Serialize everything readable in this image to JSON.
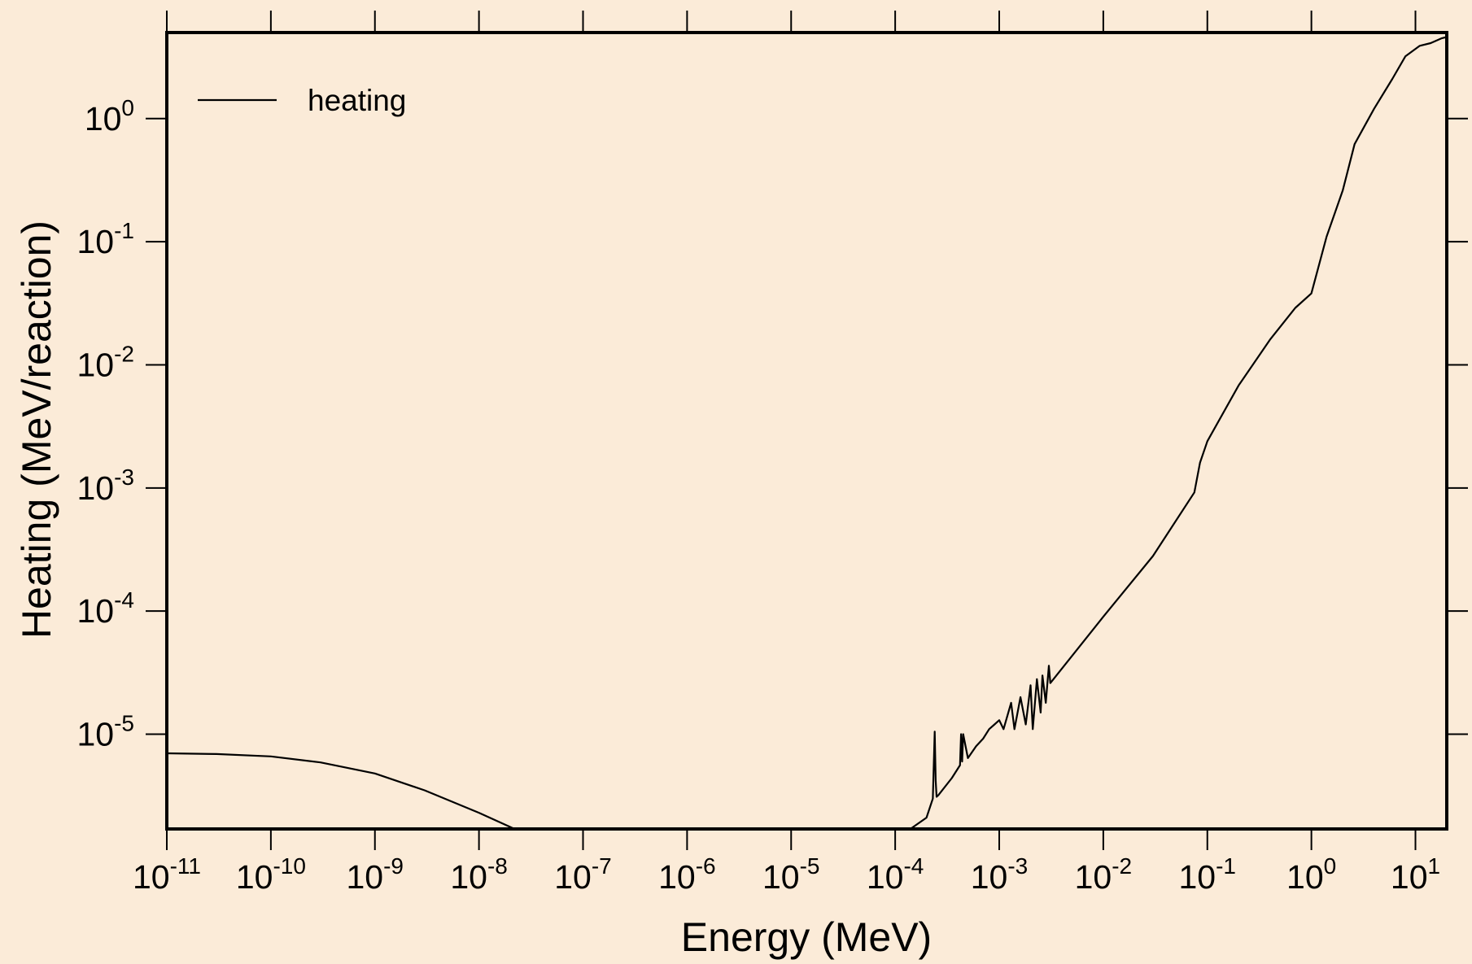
{
  "chart_data": {
    "type": "line",
    "xlabel": "Energy (MeV)",
    "ylabel": "Heating (MeV/reaction)",
    "xscale": "log",
    "yscale": "log",
    "xlim": [
      1e-11,
      20
    ],
    "ylim": [
      1.7e-06,
      5
    ],
    "grid": false,
    "legend_position": "top-left",
    "x_ticks": [
      {
        "mantissa": "10",
        "exp": "-11",
        "value": 1e-11
      },
      {
        "mantissa": "10",
        "exp": "-10",
        "value": 1e-10
      },
      {
        "mantissa": "10",
        "exp": "-9",
        "value": 1e-09
      },
      {
        "mantissa": "10",
        "exp": "-8",
        "value": 1e-08
      },
      {
        "mantissa": "10",
        "exp": "-7",
        "value": 1e-07
      },
      {
        "mantissa": "10",
        "exp": "-6",
        "value": 1e-06
      },
      {
        "mantissa": "10",
        "exp": "-5",
        "value": 1e-05
      },
      {
        "mantissa": "10",
        "exp": "-4",
        "value": 0.0001
      },
      {
        "mantissa": "10",
        "exp": "-3",
        "value": 0.001
      },
      {
        "mantissa": "10",
        "exp": "-2",
        "value": 0.01
      },
      {
        "mantissa": "10",
        "exp": "-1",
        "value": 0.1
      },
      {
        "mantissa": "10",
        "exp": "0",
        "value": 1
      },
      {
        "mantissa": "10",
        "exp": "1",
        "value": 10
      }
    ],
    "y_ticks": [
      {
        "mantissa": "10",
        "exp": "0",
        "value": 1
      },
      {
        "mantissa": "10",
        "exp": "-1",
        "value": 0.1
      },
      {
        "mantissa": "10",
        "exp": "-2",
        "value": 0.01
      },
      {
        "mantissa": "10",
        "exp": "-3",
        "value": 0.001
      },
      {
        "mantissa": "10",
        "exp": "-4",
        "value": 0.0001
      },
      {
        "mantissa": "10",
        "exp": "-5",
        "value": 1e-05
      }
    ],
    "series": [
      {
        "name": "heating",
        "color": "#000000",
        "x": [
          1e-11,
          3e-11,
          1e-10,
          3e-10,
          1e-09,
          3e-09,
          1e-08,
          2.2e-08,
          0.00014,
          0.0002,
          0.00023,
          0.00024,
          0.000245,
          0.00025,
          0.00026,
          0.00035,
          0.00042,
          0.00043,
          0.00044,
          0.00045,
          0.0005,
          0.0006,
          0.0007,
          0.0008,
          0.0009,
          0.001,
          0.0011,
          0.0013,
          0.0014,
          0.0016,
          0.0018,
          0.002,
          0.0021,
          0.0023,
          0.0025,
          0.0026,
          0.0028,
          0.003,
          0.0031,
          0.01,
          0.03,
          0.075,
          0.085,
          0.1,
          0.2,
          0.4,
          0.7,
          1.0,
          1.4,
          2.0,
          2.6,
          4.0,
          6.0,
          8.0,
          11.0,
          14.0,
          18.0,
          20.0
        ],
        "y": [
          7e-06,
          6.9e-06,
          6.6e-06,
          5.9e-06,
          4.8e-06,
          3.5e-06,
          2.3e-06,
          1.7e-06,
          1.7e-06,
          2.1e-06,
          3e-06,
          1.05e-05,
          4.2e-06,
          3.1e-06,
          3.2e-06,
          4.4e-06,
          5.6e-06,
          1e-05,
          6e-06,
          1e-05,
          6.4e-06,
          8e-06,
          9.2e-06,
          1.1e-05,
          1.2e-05,
          1.3e-05,
          1.1e-05,
          1.8e-05,
          1.1e-05,
          2e-05,
          1.2e-05,
          2.5e-05,
          1.1e-05,
          2.8e-05,
          1.5e-05,
          3e-05,
          1.8e-05,
          3.6e-05,
          2.6e-05,
          9e-05,
          0.00028,
          0.00092,
          0.0016,
          0.0024,
          0.0068,
          0.016,
          0.029,
          0.038,
          0.11,
          0.26,
          0.62,
          1.2,
          2.1,
          3.2,
          3.9,
          4.1,
          4.5,
          4.6
        ]
      }
    ]
  }
}
